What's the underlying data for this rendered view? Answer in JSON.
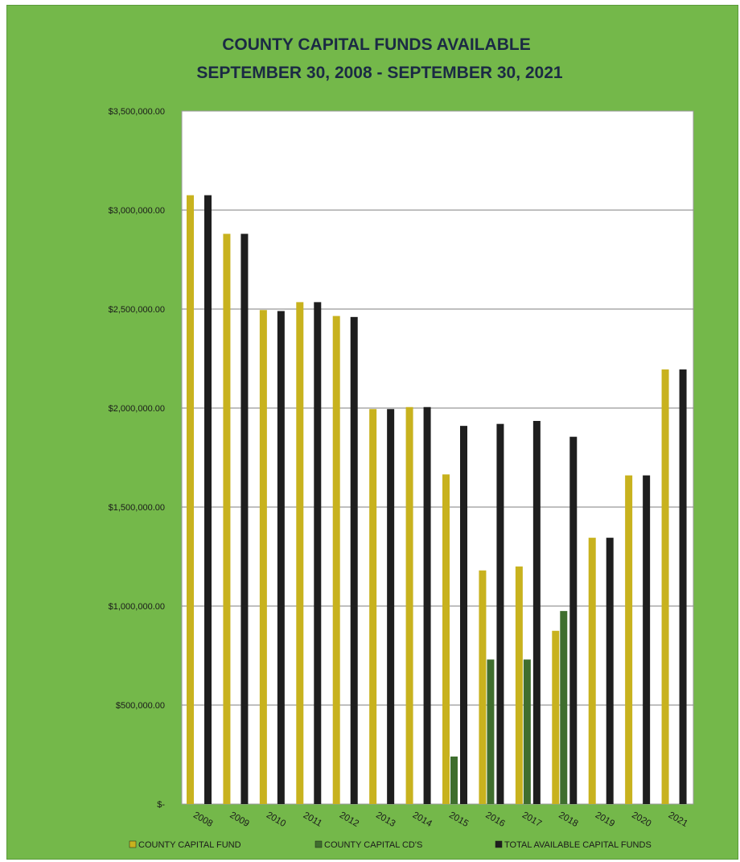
{
  "chart_data": {
    "type": "bar",
    "title_lines": [
      "COUNTY CAPITAL FUNDS AVAILABLE",
      "SEPTEMBER 30, 2008 - SEPTEMBER 30, 2021"
    ],
    "categories": [
      "2008",
      "2009",
      "2010",
      "2011",
      "2012",
      "2013",
      "2014",
      "2015",
      "2016",
      "2017",
      "2018",
      "2019",
      "2020",
      "2021"
    ],
    "series": [
      {
        "name": "COUNTY CAPITAL FUND",
        "color": "#c8b21e",
        "values": [
          3075000,
          2880000,
          2495000,
          2535000,
          2465000,
          1995000,
          2005000,
          1665000,
          1180000,
          1200000,
          875000,
          1345000,
          1660000,
          2195000
        ]
      },
      {
        "name": "COUNTY CAPITAL CD'S",
        "color": "#3f6e2e",
        "values": [
          0,
          0,
          0,
          0,
          0,
          0,
          0,
          240000,
          730000,
          730000,
          975000,
          0,
          0,
          0
        ]
      },
      {
        "name": "TOTAL AVAILABLE CAPITAL FUNDS",
        "color": "#1e1e1e",
        "values": [
          3075000,
          2880000,
          2490000,
          2535000,
          2460000,
          1995000,
          2005000,
          1910000,
          1920000,
          1935000,
          1855000,
          1345000,
          1660000,
          2195000
        ]
      }
    ],
    "yticks": [
      {
        "value": 0,
        "label": "$-"
      },
      {
        "value": 500000,
        "label": "$500,000.00"
      },
      {
        "value": 1000000,
        "label": "$1,000,000.00"
      },
      {
        "value": 1500000,
        "label": "$1,500,000.00"
      },
      {
        "value": 2000000,
        "label": "$2,000,000.00"
      },
      {
        "value": 2500000,
        "label": "$2,500,000.00"
      },
      {
        "value": 3000000,
        "label": "$3,000,000.00"
      },
      {
        "value": 3500000,
        "label": "$3,500,000.00"
      }
    ],
    "ylim": [
      0,
      3500000
    ],
    "grid": true,
    "legend_position": "bottom",
    "colors": {
      "frame_background": "#74b84a",
      "plot_background": "#ffffff"
    }
  }
}
